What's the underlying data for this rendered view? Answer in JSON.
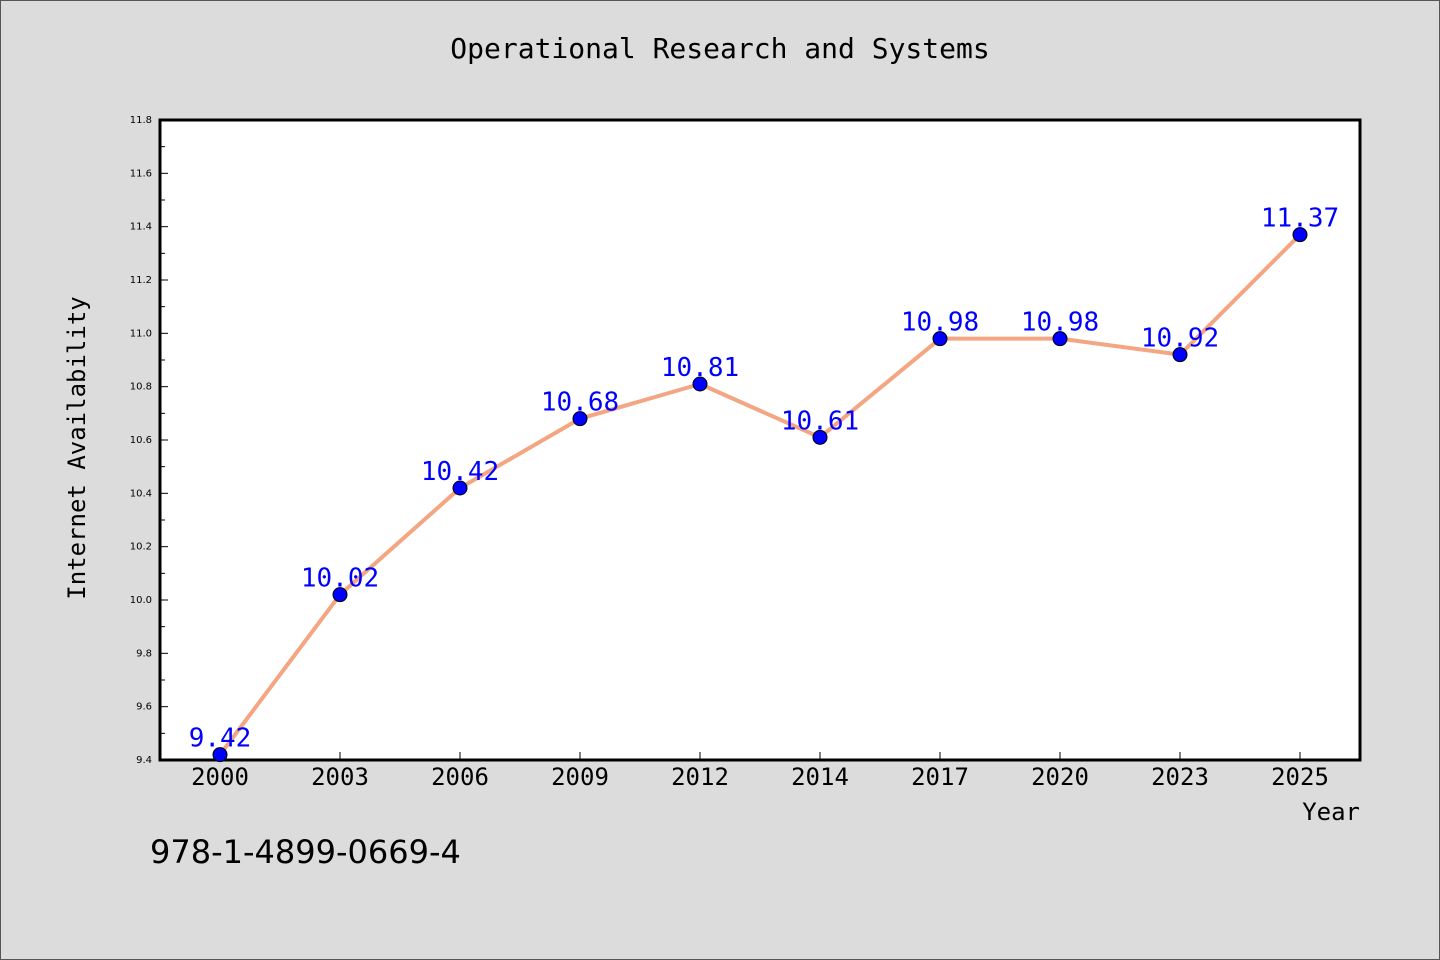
{
  "chart_data": {
    "type": "line",
    "title": "Operational Research and Systems",
    "xlabel": "Year",
    "ylabel": "Internet Availability",
    "categories": [
      "2000",
      "2003",
      "2006",
      "2009",
      "2012",
      "2014",
      "2017",
      "2020",
      "2023",
      "2025"
    ],
    "series": [
      {
        "values": [
          9.42,
          10.02,
          10.42,
          10.68,
          10.81,
          10.61,
          10.98,
          10.98,
          10.92,
          11.37
        ],
        "labels": [
          "9.42",
          "10.02",
          "10.42",
          "10.68",
          "10.81",
          "10.61",
          "10.98",
          "10.98",
          "10.92",
          "11.37"
        ],
        "line_color": "#f4a582",
        "marker_color": "#0000ff",
        "label_color": "#0000ff"
      }
    ],
    "ylim": [
      9.4,
      11.8
    ],
    "yticks": [
      "9.4",
      "9.6",
      "9.8",
      "10.0",
      "10.2",
      "10.4",
      "10.6",
      "10.8",
      "11.0",
      "11.2",
      "11.4",
      "11.6",
      "11.8"
    ],
    "grid": false,
    "legend": "none",
    "background_color": "#dcdcdc",
    "plot_background_color": "#ffffff"
  },
  "footer": {
    "isbn": "978-1-4899-0669-4"
  }
}
